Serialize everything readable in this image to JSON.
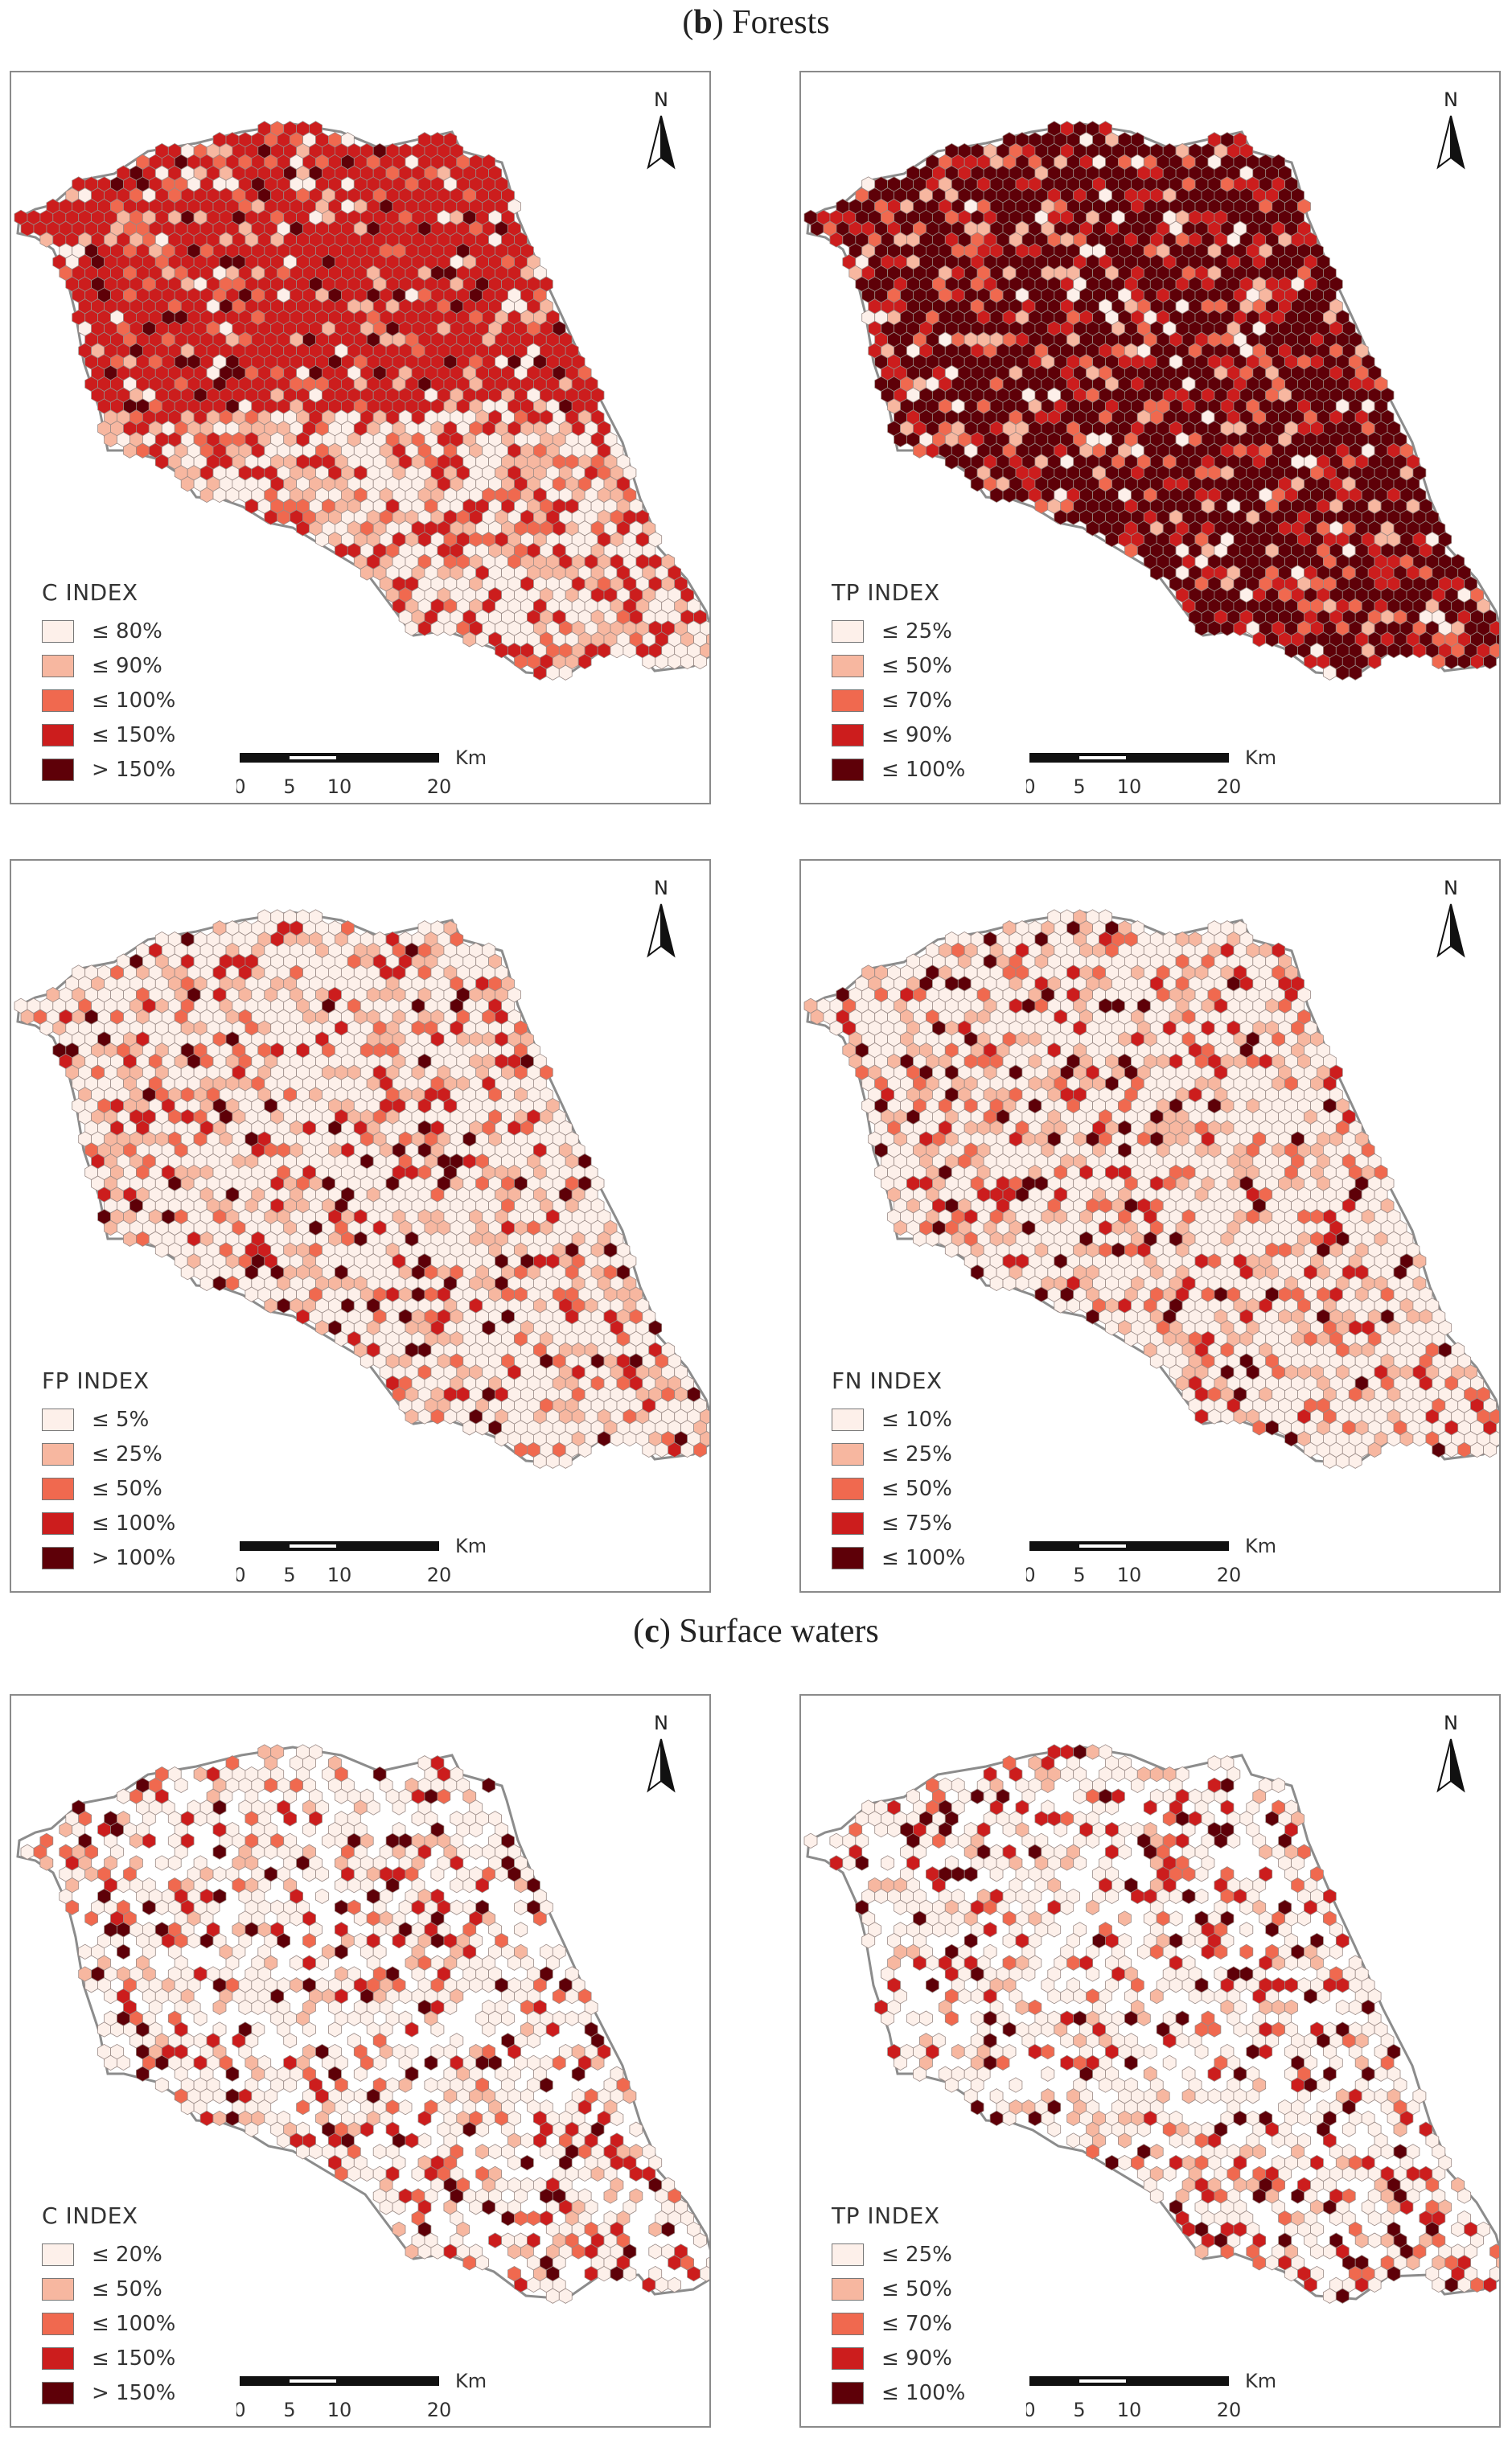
{
  "sections": [
    {
      "letter": "b",
      "name": "Forests"
    },
    {
      "letter": "c",
      "name": "Surface waters"
    }
  ],
  "north_label": "N",
  "scale": {
    "unit": "Km",
    "ticks": [
      "0",
      "5",
      "10",
      "20"
    ]
  },
  "colors": [
    "#fdf0ea",
    "#f7b7a0",
    "#f0694f",
    "#cc1d1d",
    "#5e0008"
  ],
  "panels": [
    {
      "id": "forests-c",
      "section": 0,
      "title": "C INDEX",
      "legend": [
        "≤ 80%",
        "≤ 90%",
        "≤ 100%",
        "≤ 150%",
        "> 150%"
      ],
      "pattern": "dense",
      "dominant": 3
    },
    {
      "id": "forests-tp",
      "section": 0,
      "title": "TP INDEX",
      "legend": [
        "≤ 25%",
        "≤ 50%",
        "≤ 70%",
        "≤ 90%",
        "≤ 100%"
      ],
      "pattern": "dense",
      "dominant": 4
    },
    {
      "id": "forests-fp",
      "section": 0,
      "title": "FP INDEX",
      "legend": [
        "≤ 5%",
        "≤ 25%",
        "≤ 50%",
        "≤ 100%",
        "> 100%"
      ],
      "pattern": "dense",
      "dominant": 0
    },
    {
      "id": "forests-fn",
      "section": 0,
      "title": "FN INDEX",
      "legend": [
        "≤ 10%",
        "≤ 25%",
        "≤ 50%",
        "≤ 75%",
        "≤ 100%"
      ],
      "pattern": "dense",
      "dominant": 0
    },
    {
      "id": "waters-c",
      "section": 1,
      "title": "C INDEX",
      "legend": [
        "≤ 20%",
        "≤ 50%",
        "≤ 100%",
        "≤ 150%",
        "> 150%"
      ],
      "pattern": "sparse",
      "dominant": 0
    },
    {
      "id": "waters-tp",
      "section": 1,
      "title": "TP INDEX",
      "legend": [
        "≤ 25%",
        "≤ 50%",
        "≤ 70%",
        "≤ 90%",
        "≤ 100%"
      ],
      "pattern": "sparse",
      "dominant": 0
    }
  ]
}
